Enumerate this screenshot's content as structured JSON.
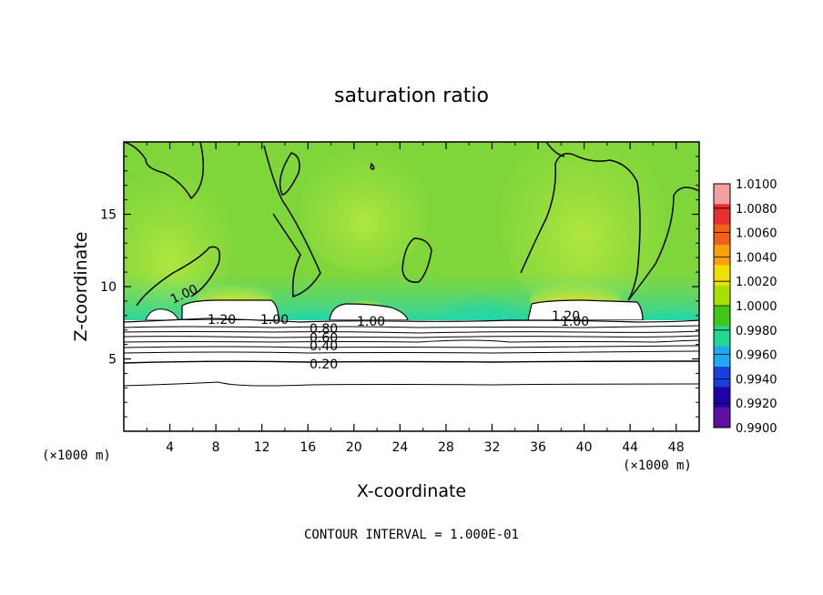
{
  "chart_data": {
    "type": "heatmap",
    "title": "saturation ratio",
    "xlabel": "X-coordinate",
    "ylabel": "Z-coordinate",
    "x_unit_left": "(×1000 m)",
    "x_unit_right": "(×1000 m)",
    "xlim": [
      0,
      50
    ],
    "ylim": [
      0,
      20
    ],
    "x_ticks": [
      "4",
      "8",
      "12",
      "16",
      "20",
      "24",
      "28",
      "32",
      "36",
      "40",
      "44",
      "48"
    ],
    "y_ticks": [
      "5",
      "10",
      "15"
    ],
    "colorbar": {
      "labels": [
        "1.0100",
        "1.0080",
        "1.0060",
        "1.0040",
        "1.0020",
        "1.0000",
        "0.9980",
        "0.9960",
        "0.9940",
        "0.9920",
        "0.9900"
      ],
      "colors": [
        "#f4a0a0",
        "#e83030",
        "#f06018",
        "#f8a010",
        "#f0e000",
        "#a8e000",
        "#40c818",
        "#20d890",
        "#20a8f0",
        "#1840e0",
        "#2000a8",
        "#6010a0"
      ]
    },
    "contour_labels": [
      "1.00",
      "1.20",
      "1.00",
      "0.80",
      "0.60",
      "0.40",
      "0.20",
      "1.00",
      "1.20",
      "1.00"
    ],
    "footer": "CONTOUR INTERVAL = 1.000E-01"
  },
  "colors": {
    "field_green": "#7ed63a",
    "field_light": "#a6e248",
    "cyan": "#22d6a8",
    "blue": "#1850e8",
    "navy": "#1a10b0",
    "orange": "#f08020",
    "red": "#e82a20",
    "yellow": "#f0e020"
  }
}
